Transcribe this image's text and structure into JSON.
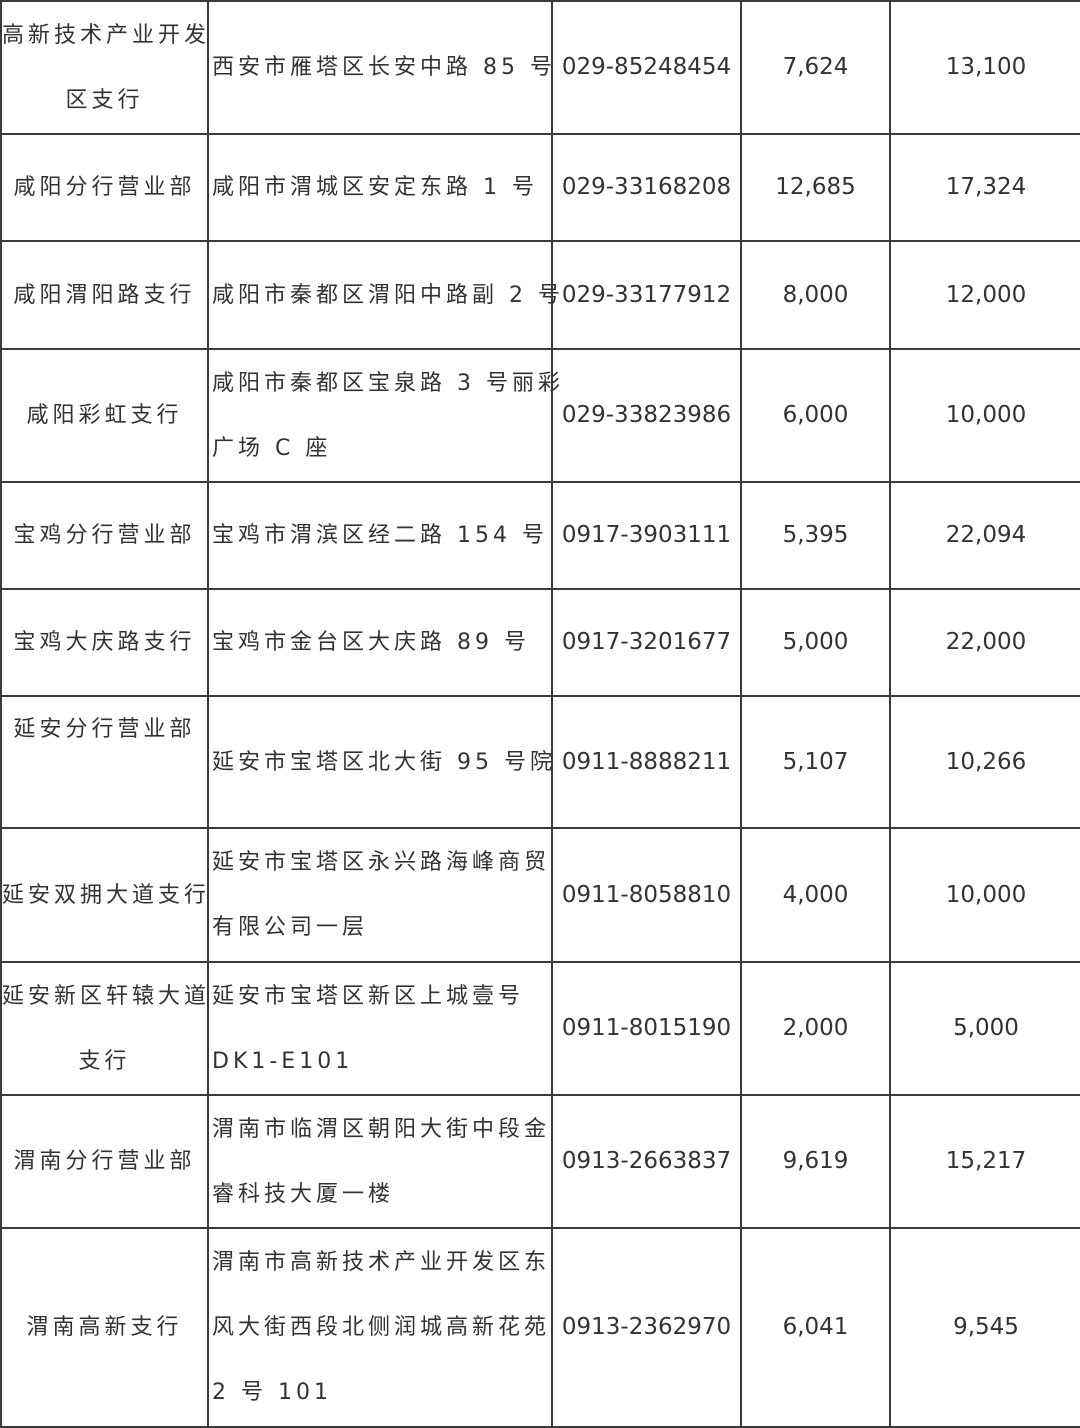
{
  "rows": [
    {
      "name": [
        "高新技术产业开发",
        "区支行"
      ],
      "address": [
        "西安市雁塔区长安中路 85 号"
      ],
      "phone": "029-85248454",
      "col4": "7,624",
      "col5": "13,100"
    },
    {
      "name": [
        "咸阳分行营业部"
      ],
      "address": [
        "咸阳市渭城区安定东路 1 号"
      ],
      "phone": "029-33168208",
      "col4": "12,685",
      "col5": "17,324"
    },
    {
      "name": [
        "咸阳渭阳路支行"
      ],
      "address": [
        "咸阳市秦都区渭阳中路副 2 号"
      ],
      "phone": "029-33177912",
      "col4": "8,000",
      "col5": "12,000"
    },
    {
      "name": [
        "咸阳彩虹支行"
      ],
      "address": [
        "咸阳市秦都区宝泉路 3 号丽彩",
        "广场 C 座"
      ],
      "phone": "029-33823986",
      "col4": "6,000",
      "col5": "10,000"
    },
    {
      "name": [
        "宝鸡分行营业部"
      ],
      "address": [
        "宝鸡市渭滨区经二路 154 号"
      ],
      "phone": "0917-3903111",
      "col4": "5,395",
      "col5": "22,094"
    },
    {
      "name": [
        "宝鸡大庆路支行"
      ],
      "address": [
        "宝鸡市金台区大庆路 89 号"
      ],
      "phone": "0917-3201677",
      "col4": "5,000",
      "col5": "22,000"
    },
    {
      "name": [
        "延安分行营业部",
        ""
      ],
      "address": [
        "延安市宝塔区北大街 95 号院"
      ],
      "phone": "0911-8888211",
      "col4": "5,107",
      "col5": "10,266"
    },
    {
      "name": [
        "延安双拥大道支行"
      ],
      "address": [
        "延安市宝塔区永兴路海峰商贸",
        "有限公司一层"
      ],
      "phone": "0911-8058810",
      "col4": "4,000",
      "col5": "10,000"
    },
    {
      "name": [
        "延安新区轩辕大道",
        "支行"
      ],
      "address": [
        "延安市宝塔区新区上城壹号",
        "DK1-E101"
      ],
      "phone": "0911-8015190",
      "col4": "2,000",
      "col5": "5,000"
    },
    {
      "name": [
        "渭南分行营业部"
      ],
      "address": [
        "渭南市临渭区朝阳大街中段金",
        "睿科技大厦一楼"
      ],
      "phone": "0913-2663837",
      "col4": "9,619",
      "col5": "15,217"
    },
    {
      "name": [
        "渭南高新支行"
      ],
      "address": [
        "渭南市高新技术产业开发区东",
        "风大街西段北侧润城高新花苑",
        "2 号 101"
      ],
      "phone": "0913-2362970",
      "col4": "6,041",
      "col5": "9,545"
    }
  ]
}
